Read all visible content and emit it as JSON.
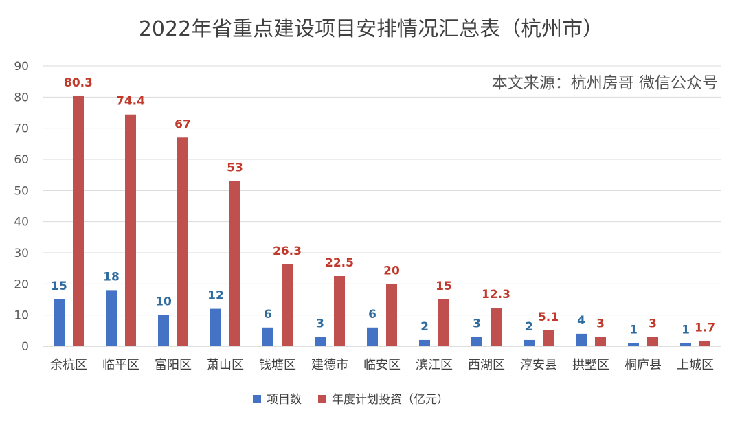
{
  "chart_data": {
    "type": "bar",
    "title": "2022年省重点建设项目安排情况汇总表（杭州市）",
    "source_note": "本文来源：杭州房哥 微信公众号",
    "categories": [
      "余杭区",
      "临平区",
      "富阳区",
      "萧山区",
      "钱塘区",
      "建德市",
      "临安区",
      "滨江区",
      "西湖区",
      "淳安县",
      "拱墅区",
      "桐庐县",
      "上城区"
    ],
    "series": [
      {
        "name": "项目数",
        "color": "#4472C4",
        "label_color": "#2E6B9E",
        "values": [
          15,
          18,
          10,
          12,
          6,
          3,
          6,
          2,
          3,
          2,
          4,
          1,
          1
        ]
      },
      {
        "name": "年度计划投资（亿元）",
        "color": "#C0504D",
        "label_color": "#C0392B",
        "values": [
          80.3,
          74.4,
          67,
          53,
          26.3,
          22.5,
          20,
          15,
          12.3,
          5.1,
          3,
          3,
          1.7
        ]
      }
    ],
    "ylim": [
      0,
      90
    ],
    "yticks": [
      0,
      10,
      20,
      30,
      40,
      50,
      60,
      70,
      80,
      90
    ],
    "grid": true,
    "legend": "bottom"
  }
}
